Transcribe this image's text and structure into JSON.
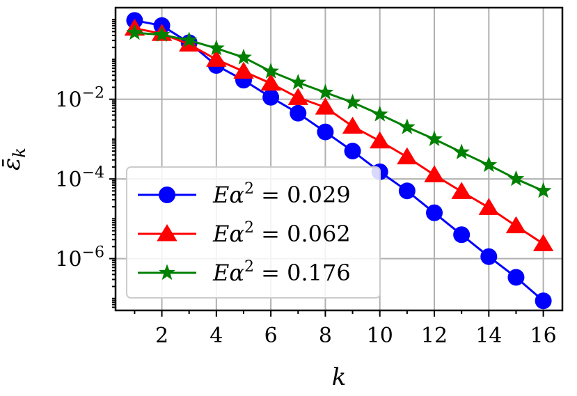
{
  "chart_data": {
    "type": "line",
    "title": "",
    "xlabel": "k",
    "ylabel": "ε̄",
    "ylabel_subscript": "k",
    "y_scale": "log",
    "xlim": [
      0.3,
      16.7
    ],
    "ylim_log10": [
      -7.3,
      0.3
    ],
    "x_ticks": [
      2,
      4,
      6,
      8,
      10,
      12,
      14,
      16
    ],
    "y_ticks": [
      {
        "exp": -2,
        "base": "10",
        "sup": "−2"
      },
      {
        "exp": -4,
        "base": "10",
        "sup": "−4"
      },
      {
        "exp": -6,
        "base": "10",
        "sup": "−6"
      }
    ],
    "grid": true,
    "legend_position": "lower-left",
    "x": [
      1,
      2,
      3,
      4,
      5,
      6,
      7,
      8,
      9,
      10,
      11,
      12,
      13,
      14,
      15,
      16
    ],
    "series": [
      {
        "name": "Eα² = 0.029",
        "legend_lhs": "Eα",
        "legend_sup": "2",
        "legend_rhs": " = 0.029",
        "color": "#0000ff",
        "marker": "circle",
        "y_log10": [
          -0.02,
          -0.15,
          -0.58,
          -1.15,
          -1.52,
          -1.95,
          -2.35,
          -2.82,
          -3.3,
          -3.82,
          -4.3,
          -4.85,
          -5.4,
          -5.95,
          -6.47,
          -7.06
        ]
      },
      {
        "name": "Eα² = 0.062",
        "legend_lhs": "Eα",
        "legend_sup": "2",
        "legend_rhs": " = 0.062",
        "color": "#ff0000",
        "marker": "triangle",
        "y_log10": [
          -0.22,
          -0.35,
          -0.62,
          -1.0,
          -1.3,
          -1.6,
          -1.96,
          -2.2,
          -2.68,
          -3.05,
          -3.45,
          -3.9,
          -4.32,
          -4.72,
          -5.18,
          -5.63
        ]
      },
      {
        "name": "Eα² = 0.176",
        "legend_lhs": "Eα",
        "legend_sup": "2",
        "legend_rhs": " = 0.176",
        "color": "#008000",
        "marker": "star",
        "y_log10": [
          -0.33,
          -0.38,
          -0.52,
          -0.72,
          -0.95,
          -1.3,
          -1.58,
          -1.83,
          -2.08,
          -2.38,
          -2.7,
          -3.0,
          -3.33,
          -3.65,
          -4.0,
          -4.3
        ]
      }
    ]
  }
}
